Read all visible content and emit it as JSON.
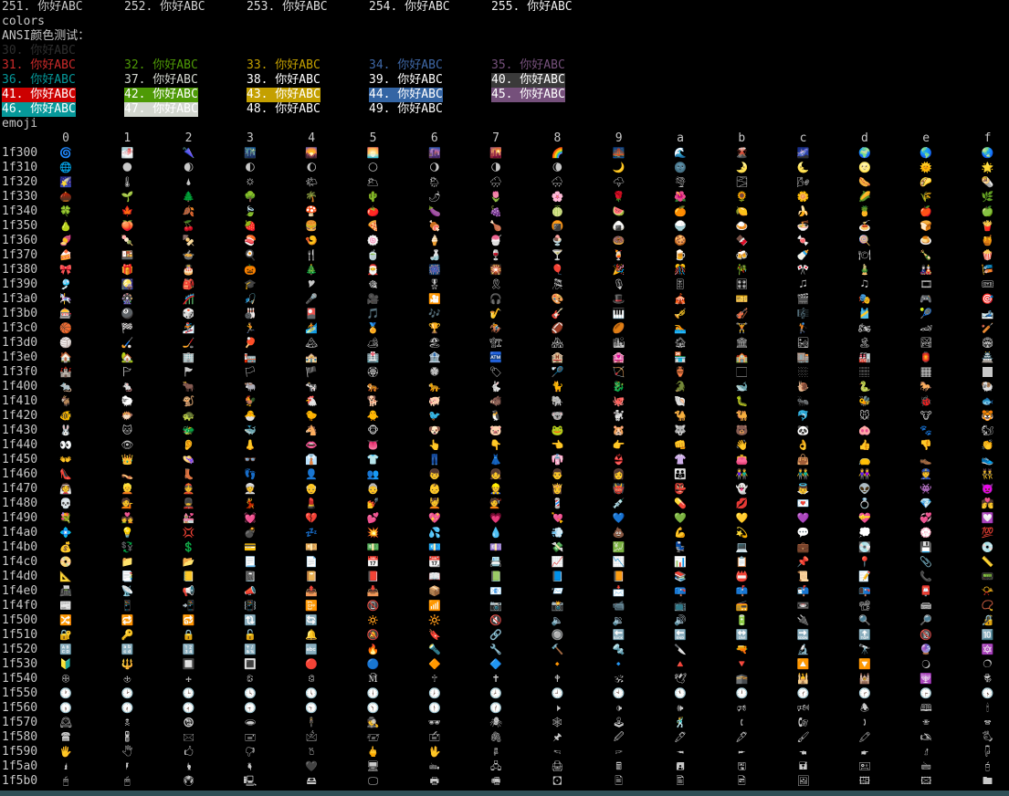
{
  "palette_line": [
    {
      "text": "251. 你好ABC",
      "fg": "#c6c6c6"
    },
    {
      "text": "252. 你好ABC",
      "fg": "#d0d0d0"
    },
    {
      "text": "253. 你好ABC",
      "fg": "#dadada"
    },
    {
      "text": "254. 你好ABC",
      "fg": "#e4e4e4"
    },
    {
      "text": "255. 你好ABC",
      "fg": "#eeeeee"
    }
  ],
  "colors_label": "colors",
  "ansi_title": "ANSI颜色测试：",
  "ansi_rows": [
    [
      {
        "text": "30. 你好ABC",
        "fg": "#2e2e2e"
      }
    ],
    [
      {
        "text": "31. 你好ABC",
        "fg": "#cc2a2a"
      },
      {
        "text": "32. 你好ABC",
        "fg": "#4e9a06"
      },
      {
        "text": "33. 你好ABC",
        "fg": "#c4a000"
      },
      {
        "text": "34. 你好ABC",
        "fg": "#3f68a8"
      },
      {
        "text": "35. 你好ABC",
        "fg": "#75507b"
      }
    ],
    [
      {
        "text": "36. 你好ABC",
        "fg": "#06989a"
      },
      {
        "text": "37. 你好ABC",
        "fg": "#d3d7cf"
      },
      {
        "text": "38. 你好ABC",
        "fg": "#ffffff"
      },
      {
        "text": "39. 你好ABC",
        "fg": "#ffffff"
      },
      {
        "text": "40. 你好ABC",
        "fg": "#ffffff",
        "bg": "#3a3a3a"
      }
    ],
    [
      {
        "text": "41. 你好ABC",
        "fg": "#ffffff",
        "bg": "#cc0000"
      },
      {
        "text": "42. 你好ABC",
        "fg": "#ffffff",
        "bg": "#4e9a06"
      },
      {
        "text": "43. 你好ABC",
        "fg": "#ffffff",
        "bg": "#c4a000"
      },
      {
        "text": "44. 你好ABC",
        "fg": "#ffffff",
        "bg": "#3465a4"
      },
      {
        "text": "45. 你好ABC",
        "fg": "#ffffff",
        "bg": "#75507b"
      }
    ],
    [
      {
        "text": "46. 你好ABC",
        "fg": "#ffffff",
        "bg": "#06989a"
      },
      {
        "text": "47. 你好ABC",
        "fg": "#ffffff",
        "bg": "#d3d7cf"
      },
      {
        "text": "48. 你好ABC",
        "fg": "#ffffff"
      },
      {
        "text": "49. 你好ABC",
        "fg": "#ffffff"
      }
    ]
  ],
  "emoji_label": "emoji",
  "emoji_columns": [
    "0",
    "1",
    "2",
    "3",
    "4",
    "5",
    "6",
    "7",
    "8",
    "9",
    "a",
    "b",
    "c",
    "d",
    "e",
    "f"
  ],
  "emoji_rows": [
    {
      "label": "1f300",
      "cells": [
        "🌀",
        "🌁",
        "🌂",
        "🌃",
        "🌄",
        "🌅",
        "🌆",
        "🌇",
        "🌈",
        "🌉",
        "🌊",
        "🌋",
        "🌌",
        "🌍",
        "🌎",
        "🌏"
      ]
    },
    {
      "label": "1f310",
      "cells": [
        "🌐",
        "🌑",
        "🌒",
        "🌓",
        "🌔",
        "🌕",
        "🌖",
        "🌗",
        "🌘",
        "🌙",
        "🌚",
        "🌛",
        "🌜",
        "🌝",
        "🌞",
        "🌟"
      ]
    },
    {
      "label": "1f320",
      "cells": [
        "🌠",
        "🌡",
        "🌢",
        "🌣",
        "🌤",
        "🌥",
        "🌦",
        "🌧",
        "🌨",
        "🌩",
        "🌪",
        "🌫",
        "🌬",
        "🌭",
        "🌮",
        "🌯"
      ]
    },
    {
      "label": "1f330",
      "cells": [
        "🌰",
        "🌱",
        "🌲",
        "🌳",
        "🌴",
        "🌵",
        "🌶",
        "🌷",
        "🌸",
        "🌹",
        "🌺",
        "🌻",
        "🌼",
        "🌽",
        "🌾",
        "🌿"
      ]
    },
    {
      "label": "1f340",
      "cells": [
        "🍀",
        "🍁",
        "🍂",
        "🍃",
        "🍄",
        "🍅",
        "🍆",
        "🍇",
        "🍈",
        "🍉",
        "🍊",
        "🍋",
        "🍌",
        "🍍",
        "🍎",
        "🍏"
      ]
    },
    {
      "label": "1f350",
      "cells": [
        "🍐",
        "🍑",
        "🍒",
        "🍓",
        "🍔",
        "🍕",
        "🍖",
        "🍗",
        "🍘",
        "🍙",
        "🍚",
        "🍛",
        "🍜",
        "🍝",
        "🍞",
        "🍟"
      ]
    },
    {
      "label": "1f360",
      "cells": [
        "🍠",
        "🍡",
        "🍢",
        "🍣",
        "🍤",
        "🍥",
        "🍦",
        "🍧",
        "🍨",
        "🍩",
        "🍪",
        "🍫",
        "🍬",
        "🍭",
        "🍮",
        "🍯"
      ]
    },
    {
      "label": "1f370",
      "cells": [
        "🍰",
        "🍱",
        "🍲",
        "🍳",
        "🍴",
        "🍵",
        "🍶",
        "🍷",
        "🍸",
        "🍹",
        "🍺",
        "🍻",
        "🍼",
        "🍽",
        "🍾",
        "🍿"
      ]
    },
    {
      "label": "1f380",
      "cells": [
        "🎀",
        "🎁",
        "🎂",
        "🎃",
        "🎄",
        "🎅",
        "🎆",
        "🎇",
        "🎈",
        "🎉",
        "🎊",
        "🎋",
        "🎌",
        "🎍",
        "🎎",
        "🎏"
      ]
    },
    {
      "label": "1f390",
      "cells": [
        "🎐",
        "🎑",
        "🎒",
        "🎓",
        "🎔",
        "🎕",
        "🎖",
        "🎗",
        "🎘",
        "🎙",
        "🎚",
        "🎛",
        "🎜",
        "🎝",
        "🎞",
        "🎟"
      ]
    },
    {
      "label": "1f3a0",
      "cells": [
        "🎠",
        "🎡",
        "🎢",
        "🎣",
        "🎤",
        "🎥",
        "🎦",
        "🎧",
        "🎨",
        "🎩",
        "🎪",
        "🎫",
        "🎬",
        "🎭",
        "🎮",
        "🎯"
      ]
    },
    {
      "label": "1f3b0",
      "cells": [
        "🎰",
        "🎱",
        "🎲",
        "🎳",
        "🎴",
        "🎵",
        "🎶",
        "🎷",
        "🎸",
        "🎹",
        "🎺",
        "🎻",
        "🎼",
        "🎽",
        "🎾",
        "🎿"
      ]
    },
    {
      "label": "1f3c0",
      "cells": [
        "🏀",
        "🏁",
        "🏂",
        "🏃",
        "🏄",
        "🏅",
        "🏆",
        "🏇",
        "🏈",
        "🏉",
        "🏊",
        "🏋",
        "🏌",
        "🏍",
        "🏎",
        "🏏"
      ]
    },
    {
      "label": "1f3d0",
      "cells": [
        "🏐",
        "🏑",
        "🏒",
        "🏓",
        "🏔",
        "🏕",
        "🏖",
        "🏗",
        "🏘",
        "🏙",
        "🏚",
        "🏛",
        "🏜",
        "🏝",
        "🏞",
        "🏟"
      ]
    },
    {
      "label": "1f3e0",
      "cells": [
        "🏠",
        "🏡",
        "🏢",
        "🏣",
        "🏤",
        "🏥",
        "🏦",
        "🏧",
        "🏨",
        "🏩",
        "🏪",
        "🏫",
        "🏬",
        "🏭",
        "🏮",
        "🏯"
      ]
    },
    {
      "label": "1f3f0",
      "cells": [
        "🏰",
        "🏱",
        "🏲",
        "🏳",
        "🏴",
        "🏵",
        "🏶",
        "🏷",
        "🏸",
        "🏹",
        "🏺",
        "🏻",
        "🏼",
        "🏽",
        "🏾",
        "🏿"
      ]
    },
    {
      "label": "1f400",
      "cells": [
        "🐀",
        "🐁",
        "🐂",
        "🐃",
        "🐄",
        "🐅",
        "🐆",
        "🐇",
        "🐈",
        "🐉",
        "🐊",
        "🐋",
        "🐌",
        "🐍",
        "🐎",
        "🐏"
      ]
    },
    {
      "label": "1f410",
      "cells": [
        "🐐",
        "🐑",
        "🐒",
        "🐓",
        "🐔",
        "🐕",
        "🐖",
        "🐗",
        "🐘",
        "🐙",
        "🐚",
        "🐛",
        "🐜",
        "🐝",
        "🐞",
        "🐟"
      ]
    },
    {
      "label": "1f420",
      "cells": [
        "🐠",
        "🐡",
        "🐢",
        "🐣",
        "🐤",
        "🐥",
        "🐦",
        "🐧",
        "🐨",
        "🐩",
        "🐪",
        "🐫",
        "🐬",
        "🐭",
        "🐮",
        "🐯"
      ]
    },
    {
      "label": "1f430",
      "cells": [
        "🐰",
        "🐱",
        "🐲",
        "🐳",
        "🐴",
        "🐵",
        "🐶",
        "🐷",
        "🐸",
        "🐹",
        "🐺",
        "🐻",
        "🐼",
        "🐽",
        "🐾",
        "🐿"
      ]
    },
    {
      "label": "1f440",
      "cells": [
        "👀",
        "👁",
        "👂",
        "👃",
        "👄",
        "👅",
        "👆",
        "👇",
        "👈",
        "👉",
        "👊",
        "👋",
        "👌",
        "👍",
        "👎",
        "👏"
      ]
    },
    {
      "label": "1f450",
      "cells": [
        "👐",
        "👑",
        "👒",
        "👓",
        "👔",
        "👕",
        "👖",
        "👗",
        "👘",
        "👙",
        "👚",
        "👛",
        "👜",
        "👝",
        "👞",
        "👟"
      ]
    },
    {
      "label": "1f460",
      "cells": [
        "👠",
        "👡",
        "👢",
        "👣",
        "👤",
        "👥",
        "👦",
        "👧",
        "👨",
        "👩",
        "👪",
        "👫",
        "👬",
        "👭",
        "👮",
        "👯"
      ]
    },
    {
      "label": "1f470",
      "cells": [
        "👰",
        "👱",
        "👲",
        "👳",
        "👴",
        "👵",
        "👶",
        "👷",
        "👸",
        "👹",
        "👺",
        "👻",
        "👼",
        "👽",
        "👾",
        "👿"
      ]
    },
    {
      "label": "1f480",
      "cells": [
        "💀",
        "💁",
        "💂",
        "💃",
        "💄",
        "💅",
        "💆",
        "💇",
        "💈",
        "💉",
        "💊",
        "💋",
        "💌",
        "💍",
        "💎",
        "💏"
      ]
    },
    {
      "label": "1f490",
      "cells": [
        "💐",
        "💑",
        "💒",
        "💓",
        "💔",
        "💕",
        "💖",
        "💗",
        "💘",
        "💙",
        "💚",
        "💛",
        "💜",
        "💝",
        "💞",
        "💟"
      ]
    },
    {
      "label": "1f4a0",
      "cells": [
        "💠",
        "💡",
        "💢",
        "💣",
        "💤",
        "💥",
        "💦",
        "💧",
        "💨",
        "💩",
        "💪",
        "💫",
        "💬",
        "💭",
        "💮",
        "💯"
      ]
    },
    {
      "label": "1f4b0",
      "cells": [
        "💰",
        "💱",
        "💲",
        "💳",
        "💴",
        "💵",
        "💶",
        "💷",
        "💸",
        "💹",
        "💺",
        "💻",
        "💼",
        "💽",
        "💾",
        "💿"
      ]
    },
    {
      "label": "1f4c0",
      "cells": [
        "📀",
        "📁",
        "📂",
        "📃",
        "📄",
        "📅",
        "📆",
        "📇",
        "📈",
        "📉",
        "📊",
        "📋",
        "📌",
        "📍",
        "📎",
        "📏"
      ]
    },
    {
      "label": "1f4d0",
      "cells": [
        "📐",
        "📑",
        "📒",
        "📓",
        "📔",
        "📕",
        "📖",
        "📗",
        "📘",
        "📙",
        "📚",
        "📛",
        "📜",
        "📝",
        "📞",
        "📟"
      ]
    },
    {
      "label": "1f4e0",
      "cells": [
        "📠",
        "📡",
        "📢",
        "📣",
        "📤",
        "📥",
        "📦",
        "📧",
        "📨",
        "📩",
        "📪",
        "📫",
        "📬",
        "📭",
        "📮",
        "📯"
      ]
    },
    {
      "label": "1f4f0",
      "cells": [
        "📰",
        "📱",
        "📲",
        "📳",
        "📴",
        "📵",
        "📶",
        "📷",
        "📸",
        "📹",
        "📺",
        "📻",
        "📼",
        "📽",
        "📾",
        "📿"
      ]
    },
    {
      "label": "1f500",
      "cells": [
        "🔀",
        "🔁",
        "🔂",
        "🔃",
        "🔄",
        "🔅",
        "🔆",
        "🔇",
        "🔈",
        "🔉",
        "🔊",
        "🔋",
        "🔌",
        "🔍",
        "🔎",
        "🔏"
      ]
    },
    {
      "label": "1f510",
      "cells": [
        "🔐",
        "🔑",
        "🔒",
        "🔓",
        "🔔",
        "🔕",
        "🔖",
        "🔗",
        "🔘",
        "🔙",
        "🔚",
        "🔛",
        "🔜",
        "🔝",
        "🔞",
        "🔟"
      ]
    },
    {
      "label": "1f520",
      "cells": [
        "🔠",
        "🔡",
        "🔢",
        "🔣",
        "🔤",
        "🔥",
        "🔦",
        "🔧",
        "🔨",
        "🔩",
        "🔪",
        "🔫",
        "🔬",
        "🔭",
        "🔮",
        "🔯"
      ]
    },
    {
      "label": "1f530",
      "cells": [
        "🔰",
        "🔱",
        "🔲",
        "🔳",
        "🔴",
        "🔵",
        "🔶",
        "🔷",
        "🔸",
        "🔹",
        "🔺",
        "🔻",
        "🔼",
        "🔽",
        "🔾",
        "🔿"
      ]
    },
    {
      "label": "1f540",
      "cells": [
        "🕀",
        "🕁",
        "🕂",
        "🕃",
        "🕄",
        "🕅",
        "🕆",
        "🕇",
        "🕈",
        "🕉",
        "🕊",
        "🕋",
        "🕌",
        "🕍",
        "🕎",
        "🕏"
      ]
    },
    {
      "label": "1f550",
      "cells": [
        "🕐",
        "🕑",
        "🕒",
        "🕓",
        "🕔",
        "🕕",
        "🕖",
        "🕗",
        "🕘",
        "🕙",
        "🕚",
        "🕛",
        "🕜",
        "🕝",
        "🕞",
        "🕟"
      ]
    },
    {
      "label": "1f560",
      "cells": [
        "🕠",
        "🕡",
        "🕢",
        "🕣",
        "🕤",
        "🕥",
        "🕦",
        "🕧",
        "🕨",
        "🕩",
        "🕪",
        "🕫",
        "🕬",
        "🕭",
        "🕮",
        "🕯"
      ]
    },
    {
      "label": "1f570",
      "cells": [
        "🕰",
        "🕱",
        "🕲",
        "🕳",
        "🕴",
        "🕵",
        "🕶",
        "🕷",
        "🕸",
        "🕹",
        "🕺",
        "🕻",
        "🕼",
        "🕽",
        "🕾",
        "🕿"
      ]
    },
    {
      "label": "1f580",
      "cells": [
        "🖀",
        "🖁",
        "🖂",
        "🖃",
        "🖄",
        "🖅",
        "🖆",
        "🖇",
        "🖈",
        "🖉",
        "🖊",
        "🖋",
        "🖌",
        "🖍",
        "🖎",
        "🖏"
      ]
    },
    {
      "label": "1f590",
      "cells": [
        "🖐",
        "🖑",
        "🖒",
        "🖓",
        "🖔",
        "🖕",
        "🖖",
        "🖗",
        "🖘",
        "🖙",
        "🖚",
        "🖛",
        "🖜",
        "🖝",
        "🖞",
        "🖟"
      ]
    },
    {
      "label": "1f5a0",
      "cells": [
        "🖠",
        "🖡",
        "🖢",
        "🖣",
        "🖤",
        "🖥",
        "🖦",
        "🖧",
        "🖨",
        "🖩",
        "🖪",
        "🖫",
        "🖬",
        "🖭",
        "🖮",
        "🖯"
      ]
    },
    {
      "label": "1f5b0",
      "cells": [
        "🖰",
        "🖱",
        "🖲",
        "🖳",
        "🖴",
        "🖵",
        "🖶",
        "🖷",
        "🖸",
        "🖹",
        "🖺",
        "🖻",
        "🖼",
        "🖽",
        "🖾",
        "🖿"
      ]
    }
  ]
}
